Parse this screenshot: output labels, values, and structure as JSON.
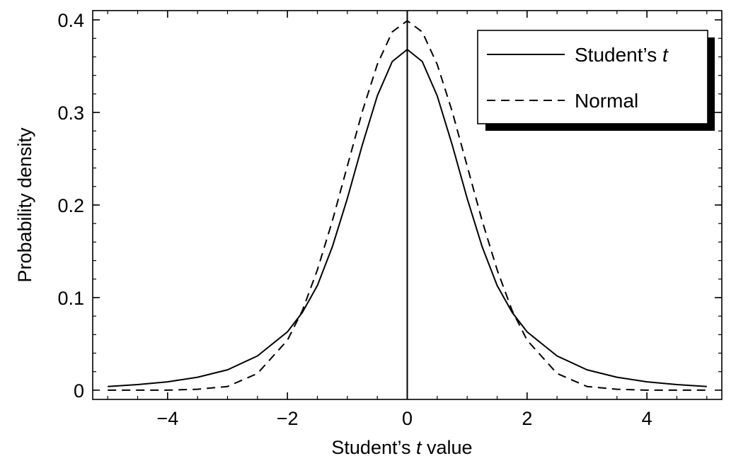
{
  "chart_data": {
    "type": "line",
    "title": "",
    "xlabel": {
      "prefix": "Student’s ",
      "var": "t",
      "suffix": " value"
    },
    "ylabel": "Probability density",
    "xlim": [
      -5.25,
      5.25
    ],
    "ylim": [
      -0.01,
      0.41
    ],
    "x_ticks": [
      -4,
      -2,
      0,
      2,
      4
    ],
    "x_tick_labels": [
      "−4",
      "−2",
      "0",
      "2",
      "4"
    ],
    "y_ticks": [
      0,
      0.1,
      0.2,
      0.3,
      0.4
    ],
    "y_tick_labels": [
      "0",
      "0.1",
      "0.2",
      "0.3",
      "0.4"
    ],
    "vertical_line_at": 0,
    "legend_position": "top-right",
    "series": [
      {
        "name": "Student’s t",
        "name_prefix": "Student’s ",
        "name_var": "t",
        "style": "solid",
        "x": [
          -5,
          -4.5,
          -4,
          -3.5,
          -3,
          -2.5,
          -2,
          -1.75,
          -1.5,
          -1.25,
          -1,
          -0.75,
          -0.5,
          -0.25,
          0,
          0.25,
          0.5,
          0.75,
          1,
          1.25,
          1.5,
          1.75,
          2,
          2.5,
          3,
          3.5,
          4,
          4.5,
          5
        ],
        "y": [
          0.004,
          0.006,
          0.009,
          0.014,
          0.022,
          0.037,
          0.063,
          0.084,
          0.113,
          0.155,
          0.207,
          0.265,
          0.318,
          0.355,
          0.368,
          0.355,
          0.318,
          0.265,
          0.207,
          0.155,
          0.113,
          0.084,
          0.063,
          0.037,
          0.022,
          0.014,
          0.009,
          0.006,
          0.004
        ]
      },
      {
        "name": "Normal",
        "style": "dashed",
        "x": [
          -5,
          -4.5,
          -4,
          -3.5,
          -3,
          -2.5,
          -2,
          -1.75,
          -1.5,
          -1.25,
          -1,
          -0.75,
          -0.5,
          -0.25,
          0,
          0.25,
          0.5,
          0.75,
          1,
          1.25,
          1.5,
          1.75,
          2,
          2.5,
          3,
          3.5,
          4,
          4.5,
          5
        ],
        "y": [
          0.0,
          0.0,
          0.0,
          0.001,
          0.004,
          0.018,
          0.054,
          0.086,
          0.13,
          0.183,
          0.242,
          0.301,
          0.352,
          0.387,
          0.399,
          0.387,
          0.352,
          0.301,
          0.242,
          0.183,
          0.13,
          0.086,
          0.054,
          0.018,
          0.004,
          0.001,
          0.0,
          0.0,
          0.0
        ]
      }
    ]
  }
}
